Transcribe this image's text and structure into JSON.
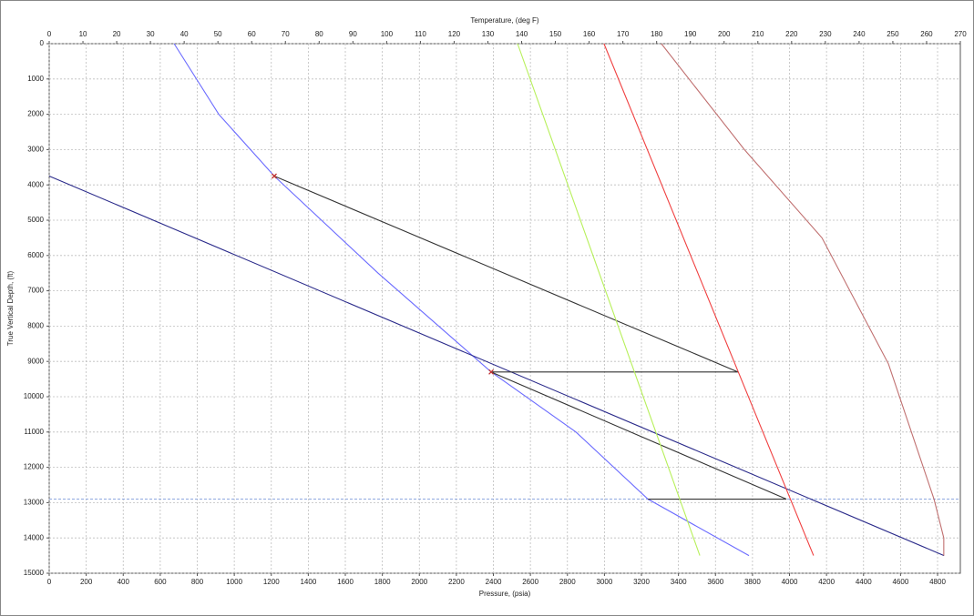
{
  "chart_data": {
    "type": "line",
    "x_label": "Pressure, (psia)",
    "x2_label": "Temperature, (deg F)",
    "y_label": "True Vertical Depth, (ft)",
    "xlim": [
      0,
      4923
    ],
    "xticks": [
      0,
      200,
      400,
      600,
      800,
      1000,
      1200,
      1400,
      1600,
      1800,
      2000,
      2200,
      2400,
      2600,
      2800,
      3000,
      3200,
      3400,
      3600,
      3800,
      4000,
      4200,
      4400,
      4600,
      4800
    ],
    "x2lim": [
      0,
      270
    ],
    "x2ticks": [
      0,
      10,
      20,
      30,
      40,
      50,
      60,
      70,
      80,
      90,
      100,
      110,
      120,
      130,
      140,
      150,
      160,
      170,
      180,
      190,
      200,
      210,
      220,
      230,
      240,
      250,
      260,
      270
    ],
    "ylim": [
      0,
      15000
    ],
    "y_inverted": true,
    "yticks": [
      0,
      1000,
      2000,
      3000,
      4000,
      5000,
      6000,
      7000,
      8000,
      9000,
      10000,
      11000,
      12000,
      13000,
      14000,
      15000
    ],
    "grid": true,
    "series": [
      {
        "color": "#6b6bff",
        "axis": "x",
        "x": [
          675,
          916,
          1216,
          1777,
          2388,
          2846,
          3235,
          3781
        ],
        "y": [
          0,
          2000,
          3750,
          6500,
          9300,
          11000,
          12900,
          14500
        ]
      },
      {
        "color": "#2a2a8a",
        "axis": "x",
        "x": [
          0,
          4835
        ],
        "y": [
          3750,
          14500
        ]
      },
      {
        "color": "#333333",
        "axis": "x",
        "x": [
          1216,
          3722,
          2388,
          3983,
          3235
        ],
        "y": [
          3750,
          9300,
          9300,
          12900,
          12900
        ]
      },
      {
        "color": "#b7f05a",
        "axis": "x2",
        "x": [
          138.8,
          192.8
        ],
        "y": [
          0,
          14500
        ]
      },
      {
        "color": "#f04040",
        "axis": "x2",
        "x": [
          164.4,
          204.2,
          226.5
        ],
        "y": [
          0,
          9300,
          14500
        ]
      },
      {
        "color": "#c07070",
        "axis": "x2",
        "x": [
          181.4,
          206,
          229,
          248.7,
          262.2,
          265.1,
          265.1
        ],
        "y": [
          0,
          3000,
          5500,
          9070,
          12900,
          14000,
          14500
        ]
      }
    ],
    "markers": {
      "color": "#c03030",
      "x": [
        1216,
        2388
      ],
      "y": [
        3750,
        9300
      ]
    },
    "reference_line": {
      "y": 12900,
      "color": "#8fa8e0"
    }
  }
}
